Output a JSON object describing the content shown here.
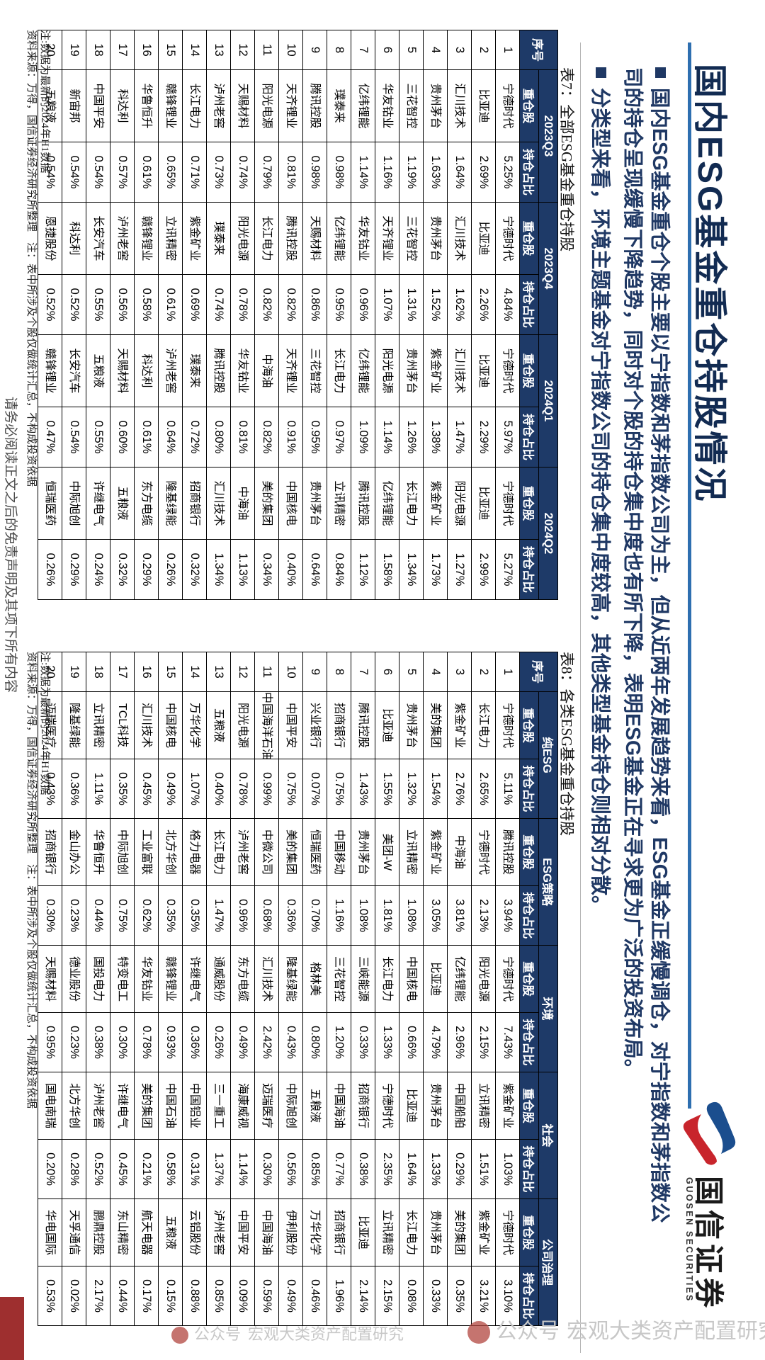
{
  "header": {
    "title": "国内ESG基金重仓持股情况",
    "logo_cn": "国信证券",
    "logo_en": "GUOSEN SECURITIES",
    "accent_blue": "#2e6fb0",
    "brand_navy": "#1e3a68",
    "brand_red": "#c8252c"
  },
  "bullets": [
    {
      "lines": [
        "国内ESG基金重仓个股主要以宁指数和茅指数公司为主，但从近两年发展趋势来看，ESG基金正缓慢调仓，对宁指数和茅指数公",
        "司的持仓呈现缓慢下降趋势，同时对个股的持仓集中度也有所下降，表明ESG基金正在寻求更为广泛的投资布局。"
      ]
    },
    {
      "lines": [
        "分类型来看，环境主题基金对宁指数公司的持仓集中度较高，其他类型基金持仓则相对分散。"
      ]
    }
  ],
  "table7": {
    "caption": "表7：全部ESG基金重仓持股",
    "index_label": "序号",
    "sub_labels": [
      "重仓股",
      "持仓占比"
    ],
    "group_labels": [
      "2023Q3",
      "2023Q4",
      "2024Q1",
      "2024Q2"
    ],
    "rows": [
      {
        "no": "1",
        "cells": [
          [
            "宁德时代",
            "5.25%"
          ],
          [
            "宁德时代",
            "4.84%"
          ],
          [
            "宁德时代",
            "5.97%"
          ],
          [
            "宁德时代",
            "5.27%"
          ]
        ]
      },
      {
        "no": "2",
        "cells": [
          [
            "比亚迪",
            "2.69%"
          ],
          [
            "比亚迪",
            "2.26%"
          ],
          [
            "比亚迪",
            "2.29%"
          ],
          [
            "比亚迪",
            "2.99%"
          ]
        ]
      },
      {
        "no": "3",
        "cells": [
          [
            "汇川技术",
            "1.64%"
          ],
          [
            "汇川技术",
            "1.62%"
          ],
          [
            "汇川技术",
            "1.47%"
          ],
          [
            "阳光电源",
            "1.27%"
          ]
        ]
      },
      {
        "no": "4",
        "cells": [
          [
            "贵州茅台",
            "1.63%"
          ],
          [
            "贵州茅台",
            "1.52%"
          ],
          [
            "紫金矿业",
            "1.38%"
          ],
          [
            "紫金矿业",
            "1.73%"
          ]
        ]
      },
      {
        "no": "5",
        "cells": [
          [
            "三花智控",
            "1.19%"
          ],
          [
            "三花智控",
            "1.31%"
          ],
          [
            "贵州茅台",
            "1.26%"
          ],
          [
            "长江电力",
            "1.34%"
          ]
        ]
      },
      {
        "no": "6",
        "cells": [
          [
            "华友钴业",
            "1.16%"
          ],
          [
            "天齐锂业",
            "1.07%"
          ],
          [
            "阳光电源",
            "1.14%"
          ],
          [
            "亿纬锂能",
            "1.58%"
          ]
        ]
      },
      {
        "no": "7",
        "cells": [
          [
            "亿纬锂能",
            "1.14%"
          ],
          [
            "华友钴业",
            "0.96%"
          ],
          [
            "亿纬锂能",
            "1.09%"
          ],
          [
            "腾讯控股",
            "1.12%"
          ]
        ]
      },
      {
        "no": "8",
        "cells": [
          [
            "璞泰来",
            "0.98%"
          ],
          [
            "亿纬锂能",
            "0.95%"
          ],
          [
            "长江电力",
            "0.97%"
          ],
          [
            "立讯精密",
            "0.84%"
          ]
        ]
      },
      {
        "no": "9",
        "cells": [
          [
            "腾讯控股",
            "0.98%"
          ],
          [
            "天赐材料",
            "0.86%"
          ],
          [
            "三花智控",
            "0.95%"
          ],
          [
            "贵州茅台",
            "0.64%"
          ]
        ]
      },
      {
        "no": "10",
        "cells": [
          [
            "天齐锂业",
            "0.81%"
          ],
          [
            "腾讯控股",
            "0.82%"
          ],
          [
            "天齐锂业",
            "0.91%"
          ],
          [
            "中国核电",
            "0.40%"
          ]
        ]
      },
      {
        "no": "11",
        "cells": [
          [
            "阳光电源",
            "0.79%"
          ],
          [
            "长江电力",
            "0.82%"
          ],
          [
            "中海油",
            "0.82%"
          ],
          [
            "美的集团",
            "0.34%"
          ]
        ]
      },
      {
        "no": "12",
        "cells": [
          [
            "天赐材料",
            "0.74%"
          ],
          [
            "阳光电源",
            "0.78%"
          ],
          [
            "华友钴业",
            "0.81%"
          ],
          [
            "中海油",
            "1.13%"
          ]
        ]
      },
      {
        "no": "13",
        "cells": [
          [
            "泸州老窖",
            "0.73%"
          ],
          [
            "璞泰来",
            "0.74%"
          ],
          [
            "腾讯控股",
            "0.80%"
          ],
          [
            "汇川技术",
            "1.34%"
          ]
        ]
      },
      {
        "no": "14",
        "cells": [
          [
            "长江电力",
            "0.71%"
          ],
          [
            "紫金矿业",
            "0.69%"
          ],
          [
            "璞泰来",
            "0.72%"
          ],
          [
            "招商银行",
            "0.32%"
          ]
        ]
      },
      {
        "no": "15",
        "cells": [
          [
            "赣锋锂业",
            "0.65%"
          ],
          [
            "立讯精密",
            "0.61%"
          ],
          [
            "泸州老窖",
            "0.64%"
          ],
          [
            "隆基绿能",
            "0.26%"
          ]
        ]
      },
      {
        "no": "16",
        "cells": [
          [
            "华鲁恒升",
            "0.61%"
          ],
          [
            "赣锋锂业",
            "0.58%"
          ],
          [
            "科达利",
            "0.61%"
          ],
          [
            "东方电缆",
            "0.29%"
          ]
        ]
      },
      {
        "no": "17",
        "cells": [
          [
            "科达利",
            "0.57%"
          ],
          [
            "泸州老窖",
            "0.56%"
          ],
          [
            "天赐材料",
            "0.60%"
          ],
          [
            "五粮液",
            "0.32%"
          ]
        ]
      },
      {
        "no": "18",
        "cells": [
          [
            "中国平安",
            "0.54%"
          ],
          [
            "长安汽车",
            "0.55%"
          ],
          [
            "五粮液",
            "0.55%"
          ],
          [
            "许继电气",
            "0.24%"
          ]
        ]
      },
      {
        "no": "19",
        "cells": [
          [
            "新宙邦",
            "0.54%"
          ],
          [
            "科达利",
            "0.52%"
          ],
          [
            "长安汽车",
            "0.54%"
          ],
          [
            "中际旭创",
            "0.29%"
          ]
        ]
      },
      {
        "no": "20",
        "cells": [
          [
            "五粮液",
            "0.54%"
          ],
          [
            "恩捷股份",
            "0.52%"
          ],
          [
            "赣锋锂业",
            "0.47%"
          ],
          [
            "恒瑞医药",
            "0.26%"
          ]
        ]
      }
    ]
  },
  "table8": {
    "caption": "表8：各类ESG基金重仓持股",
    "index_label": "序号",
    "sub_labels": [
      "重仓股",
      "持仓占比"
    ],
    "group_labels": [
      "纯ESG",
      "ESG策略",
      "环境",
      "社会",
      "公司治理"
    ],
    "rows": [
      {
        "no": "1",
        "cells": [
          [
            "宁德时代",
            "5.11%"
          ],
          [
            "腾讯控股",
            "3.94%"
          ],
          [
            "宁德时代",
            "7.43%"
          ],
          [
            "紫金矿业",
            "1.03%"
          ],
          [
            "宁德时代",
            "3.10%"
          ]
        ]
      },
      {
        "no": "2",
        "cells": [
          [
            "长江电力",
            "2.65%"
          ],
          [
            "宁德时代",
            "2.13%"
          ],
          [
            "阳光电源",
            "2.15%"
          ],
          [
            "立讯精密",
            "1.51%"
          ],
          [
            "紫金矿业",
            "3.21%"
          ]
        ]
      },
      {
        "no": "3",
        "cells": [
          [
            "紫金矿业",
            "2.76%"
          ],
          [
            "中海油",
            "3.81%"
          ],
          [
            "亿纬锂能",
            "2.96%"
          ],
          [
            "中国船舶",
            "0.29%"
          ],
          [
            "美的集团",
            "0.35%"
          ]
        ]
      },
      {
        "no": "4",
        "cells": [
          [
            "美的集团",
            "1.54%"
          ],
          [
            "紫金矿业",
            "3.05%"
          ],
          [
            "比亚迪",
            "4.79%"
          ],
          [
            "贵州茅台",
            "1.33%"
          ],
          [
            "贵州茅台",
            "0.33%"
          ]
        ]
      },
      {
        "no": "5",
        "cells": [
          [
            "贵州茅台",
            "1.32%"
          ],
          [
            "立讯精密",
            "1.08%"
          ],
          [
            "中国核电",
            "0.66%"
          ],
          [
            "比亚迪",
            "1.64%"
          ],
          [
            "长江电力",
            "0.08%"
          ]
        ]
      },
      {
        "no": "6",
        "cells": [
          [
            "比亚迪",
            "1.55%"
          ],
          [
            "美团-W",
            "1.81%"
          ],
          [
            "长江电力",
            "1.33%"
          ],
          [
            "宁德时代",
            "2.35%"
          ],
          [
            "立讯精密",
            "2.15%"
          ]
        ]
      },
      {
        "no": "7",
        "cells": [
          [
            "腾讯控股",
            "1.43%"
          ],
          [
            "贵州茅台",
            "1.08%"
          ],
          [
            "三峡能源",
            "0.33%"
          ],
          [
            "招商银行",
            "0.38%"
          ],
          [
            "比亚迪",
            "2.14%"
          ]
        ]
      },
      {
        "no": "8",
        "cells": [
          [
            "招商银行",
            "0.75%"
          ],
          [
            "中国移动",
            "1.16%"
          ],
          [
            "三花智控",
            "1.20%"
          ],
          [
            "中国海油",
            "0.77%"
          ],
          [
            "招商银行",
            "1.96%"
          ]
        ]
      },
      {
        "no": "9",
        "cells": [
          [
            "兴业银行",
            "0.07%"
          ],
          [
            "恒瑞医药",
            "0.70%"
          ],
          [
            "格林美",
            "0.80%"
          ],
          [
            "五粮液",
            "0.85%"
          ],
          [
            "万华化学",
            "0.46%"
          ]
        ]
      },
      {
        "no": "10",
        "cells": [
          [
            "中国平安",
            "0.75%"
          ],
          [
            "美的集团",
            "0.36%"
          ],
          [
            "隆基绿能",
            "0.43%"
          ],
          [
            "中际旭创",
            "0.56%"
          ],
          [
            "伊利股份",
            "0.49%"
          ]
        ]
      },
      {
        "no": "11",
        "cells": [
          [
            "中国海洋石油",
            "0.99%"
          ],
          [
            "中微公司",
            "0.68%"
          ],
          [
            "汇川技术",
            "2.42%"
          ],
          [
            "迈瑞医疗",
            "0.30%"
          ],
          [
            "中国海油",
            "0.59%"
          ]
        ]
      },
      {
        "no": "12",
        "cells": [
          [
            "阳光电源",
            "0.78%"
          ],
          [
            "泸州老窖",
            "0.96%"
          ],
          [
            "东方电缆",
            "0.49%"
          ],
          [
            "海康威视",
            "1.14%"
          ],
          [
            "中国平安",
            "0.09%"
          ]
        ]
      },
      {
        "no": "13",
        "cells": [
          [
            "五粮液",
            "0.40%"
          ],
          [
            "长江电力",
            "1.47%"
          ],
          [
            "通威股份",
            "0.26%"
          ],
          [
            "三一重工",
            "1.37%"
          ],
          [
            "泸州老窖",
            "0.85%"
          ]
        ]
      },
      {
        "no": "14",
        "cells": [
          [
            "万华化学",
            "1.07%"
          ],
          [
            "格力电器",
            "0.35%"
          ],
          [
            "许继电气",
            "0.36%"
          ],
          [
            "中国铝业",
            "0.31%"
          ],
          [
            "云铝股份",
            "0.88%"
          ]
        ]
      },
      {
        "no": "15",
        "cells": [
          [
            "中国核电",
            "0.49%"
          ],
          [
            "北方华创",
            "0.35%"
          ],
          [
            "赣锋锂业",
            "0.93%"
          ],
          [
            "中国石油",
            "0.58%"
          ],
          [
            "五粮液",
            "0.15%"
          ]
        ]
      },
      {
        "no": "16",
        "cells": [
          [
            "汇川技术",
            "0.45%"
          ],
          [
            "工业富联",
            "0.62%"
          ],
          [
            "华友钴业",
            "0.78%"
          ],
          [
            "美的集团",
            "0.21%"
          ],
          [
            "航天电器",
            "0.17%"
          ]
        ]
      },
      {
        "no": "17",
        "cells": [
          [
            "TCL科技",
            "0.35%"
          ],
          [
            "中际旭创",
            "0.75%"
          ],
          [
            "特变电工",
            "0.30%"
          ],
          [
            "许继电气",
            "0.45%"
          ],
          [
            "东山精密",
            "0.44%"
          ]
        ]
      },
      {
        "no": "18",
        "cells": [
          [
            "立讯精密",
            "1.11%"
          ],
          [
            "华鲁恒升",
            "0.44%"
          ],
          [
            "国投电力",
            "0.38%"
          ],
          [
            "泸州老窖",
            "0.52%"
          ],
          [
            "鹏鼎控股",
            "2.17%"
          ]
        ]
      },
      {
        "no": "19",
        "cells": [
          [
            "隆基绿能",
            "0.36%"
          ],
          [
            "金山办公",
            "0.23%"
          ],
          [
            "德业股份",
            "0.23%"
          ],
          [
            "北方华创",
            "0.28%"
          ],
          [
            "天孚通信",
            "0.02%"
          ]
        ]
      },
      {
        "no": "20",
        "cells": [
          [
            "迈瑞医疗",
            "0.43%"
          ],
          [
            "招商银行",
            "0.30%"
          ],
          [
            "天赐材料",
            "0.95%"
          ],
          [
            "国电南瑞",
            "0.20%"
          ],
          [
            "华电国际",
            "0.53%"
          ]
        ]
      }
    ]
  },
  "notes": {
    "data_note": "注:数据为最新的2024年H1数据",
    "source_note": "资料来源：万得，国信证券经济研究所整理　注：表中所涉及个股仅做统计汇总，不构成投资依据"
  },
  "footer": {
    "disclaimer": "请务必阅读正文之后的免责声明及其项下所有内容"
  },
  "watermark": {
    "label1": "公众号",
    "text1": "宏观大类资产配置研究",
    "label2": "公众号",
    "text2": "宏观大类资产配置研究"
  }
}
